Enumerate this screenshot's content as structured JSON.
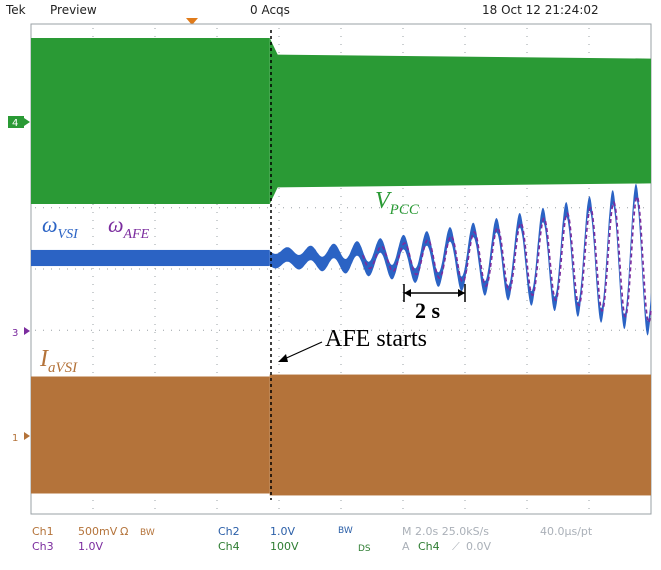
{
  "header": {
    "brand": "Tek",
    "mode": "Preview",
    "acqs": "0 Acqs",
    "datetime": "18 Oct 12 21:24:02"
  },
  "channel_markers": {
    "ch4": "4",
    "ch3": "3",
    "ch1": "1"
  },
  "colors": {
    "ch4": "#2a9a35",
    "ch3": "#7b2c9e",
    "ch2": "#2b63c4",
    "ch1": "#b4733a",
    "footer_blue": "#2b5fa8",
    "footer_green": "#2e7d32",
    "footer_gray": "#aab0b8",
    "trigger": "#e07b1a"
  },
  "annotations": {
    "vpcc_base": "V",
    "vpcc_sub": "PCC",
    "wvsi_base": "ω",
    "wvsi_sub": "VSI",
    "wafe_base": "ω",
    "wafe_sub": "AFE",
    "iavsi_base": "I",
    "iavsi_sub": "aVSI",
    "time_span": "2 s",
    "afe_starts": "AFE starts"
  },
  "footer": {
    "ch1_label": "Ch1",
    "ch1_scale": "500mV",
    "ch1_ohm": "Ω",
    "ch1_bw": "BW",
    "ch2_label": "Ch2",
    "ch2_scale": "1.0V",
    "ch2_bw": "BW",
    "timebase": "M 2.0s 25.0kS/s",
    "pt": "40.0μs/pt",
    "ch3_label": "Ch3",
    "ch3_scale": "1.0V",
    "ch4_label": "Ch4",
    "ch4_scale": "100V",
    "ch4_ds": "DS",
    "trig_mode": "A",
    "trig_src": "Ch4",
    "trig_slope": "⟋",
    "trig_level": "0.0V"
  },
  "chart_data": {
    "type": "line",
    "title": "",
    "xlabel": "",
    "ylabel": "",
    "x_divisions": 10,
    "y_divisions": 8,
    "time_per_div_s": 2.0,
    "x_range_s": [
      0,
      20
    ],
    "event_time_s": 7.7,
    "series": [
      {
        "name": "V_PCC",
        "channel": "Ch4",
        "envelope_before_div": [
          -2.0,
          2.0
        ],
        "envelope_after_div": [
          -1.6,
          1.6
        ],
        "note_style": "filled band"
      },
      {
        "name": "ω_VSI",
        "channel": "Ch2",
        "center_div": 0.0,
        "band_before_div": 0.13,
        "oscillation_growth": true,
        "period_s": 0.75,
        "amplitude_at_end_div": 1.1
      },
      {
        "name": "ω_AFE",
        "channel": "Ch3",
        "center_div": 0.0,
        "oscillation_growth": true,
        "period_s": 0.75,
        "amplitude_at_end_div": 1.0
      },
      {
        "name": "I_aVSI",
        "channel": "Ch1",
        "envelope_before_div": [
          -1.5,
          1.5
        ],
        "envelope_after_div": [
          -1.55,
          1.55
        ]
      }
    ]
  }
}
